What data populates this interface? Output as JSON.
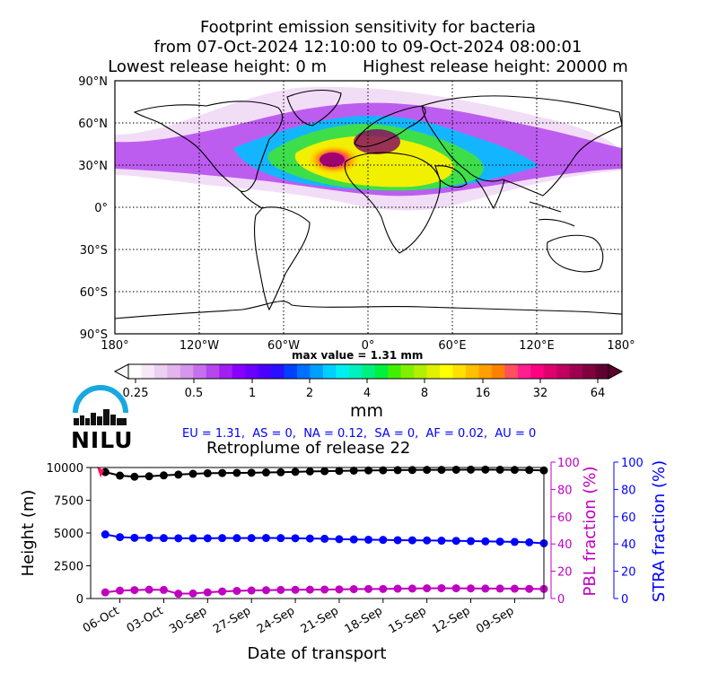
{
  "header": {
    "title_line1": "Footprint emission sensitivity for bacteria",
    "title_line2": "from 07-Oct-2024 12:10:00 to 09-Oct-2024 08:00:01",
    "title_line3": "Lowest release height: 0 m       Highest release height: 20000 m"
  },
  "map": {
    "lat_labels": [
      "90°N",
      "60°N",
      "30°N",
      "0°",
      "30°S",
      "60°S",
      "90°S"
    ],
    "lon_labels": [
      "180°",
      "120°W",
      "60°W",
      "0°",
      "60°E",
      "120°E",
      "180°"
    ]
  },
  "colorbar": {
    "max_value_label": "max value = 1.31 mm",
    "tick_labels": [
      "0.25",
      "0.5",
      "1",
      "2",
      "4",
      "8",
      "16",
      "32",
      "64"
    ],
    "unit": "mm",
    "colors": [
      "#ffffff",
      "#f6e8f8",
      "#eccff2",
      "#e2b5ed",
      "#d696ec",
      "#c770ec",
      "#b447ee",
      "#a11ff2",
      "#8a00ff",
      "#6a00ff",
      "#4a00ff",
      "#2a10ff",
      "#0040ff",
      "#0070ff",
      "#00a0ff",
      "#00d0ff",
      "#00f0f0",
      "#00f0c0",
      "#00f080",
      "#00f040",
      "#40f000",
      "#80f000",
      "#b0f000",
      "#e0f000",
      "#ffff00",
      "#ffe000",
      "#ffc000",
      "#ffa000",
      "#ff8000",
      "#ff5060",
      "#ff2090",
      "#ff0080",
      "#e00070",
      "#c00060",
      "#a00050",
      "#800040",
      "#600030"
    ]
  },
  "logo": {
    "text": "NILU"
  },
  "fractions_note": "EU = 1.31,  AS = 0,  NA = 0.12,  SA = 0,  AF = 0.02,  AU = 0",
  "plot": {
    "title": "Retroplume of release 22",
    "xlabel": "Date of transport",
    "ylabel_left": "Height (m)",
    "ylabel_pbl": "PBL fraction (%)",
    "ylabel_stra": "STRA fraction (%)"
  },
  "chart_data": {
    "type": "line",
    "x_tick_labels": [
      "06-Oct",
      "03-Oct",
      "30-Sep",
      "27-Sep",
      "24-Sep",
      "21-Sep",
      "18-Sep",
      "15-Sep",
      "12-Sep",
      "09-Sep"
    ],
    "x_days": [
      0,
      1,
      2,
      3,
      4,
      5,
      6,
      7,
      8,
      9,
      10,
      11,
      12,
      13,
      14,
      15,
      16,
      17,
      18,
      19,
      20,
      21,
      22,
      23,
      24,
      25,
      26,
      27,
      28,
      29,
      30
    ],
    "xlim_days_before_release": [
      -1,
      30
    ],
    "y_left_ticks": [
      "0",
      "2500",
      "5000",
      "7500",
      "10000"
    ],
    "y_left_range": [
      0,
      10000
    ],
    "y_right_ticks": [
      "0",
      "20",
      "40",
      "60",
      "80",
      "100"
    ],
    "y_right_range": [
      0,
      100
    ],
    "series": [
      {
        "name": "Height (m)",
        "axis": "left",
        "color": "#000000",
        "values": [
          9650,
          9380,
          9300,
          9330,
          9400,
          9460,
          9520,
          9560,
          9580,
          9590,
          9600,
          9620,
          9640,
          9670,
          9700,
          9720,
          9740,
          9760,
          9780,
          9790,
          9800,
          9810,
          9820,
          9820,
          9830,
          9840,
          9840,
          9830,
          9820,
          9810,
          9780
        ]
      },
      {
        "name": "STRA fraction (%)",
        "axis": "stra",
        "color": "#0000ff",
        "values": [
          47,
          45,
          44.5,
          44.5,
          44.3,
          44.2,
          44.2,
          44.2,
          44.3,
          44.3,
          44.3,
          44.4,
          44.3,
          44.2,
          44,
          43.8,
          43.5,
          43.3,
          43.1,
          43,
          42.8,
          42.7,
          42.6,
          42.4,
          42.3,
          42.1,
          41.9,
          41.7,
          41.5,
          41.2,
          40.5
        ]
      },
      {
        "name": "PBL fraction (%)",
        "axis": "pbl",
        "color": "#c000c0",
        "values": [
          4.5,
          5.8,
          6.2,
          6.5,
          6.3,
          3.5,
          3.7,
          4.5,
          5.2,
          5.6,
          5.9,
          6.1,
          6.3,
          6.4,
          6.5,
          6.6,
          6.7,
          6.9,
          7.0,
          7.0,
          7.2,
          7.3,
          7.5,
          7.6,
          7.5,
          7.4,
          7.3,
          7.3,
          7.2,
          7.1,
          7.0
        ]
      }
    ],
    "release_marker": {
      "day": -0.2,
      "value": 9650,
      "color": "#ff1060"
    }
  }
}
